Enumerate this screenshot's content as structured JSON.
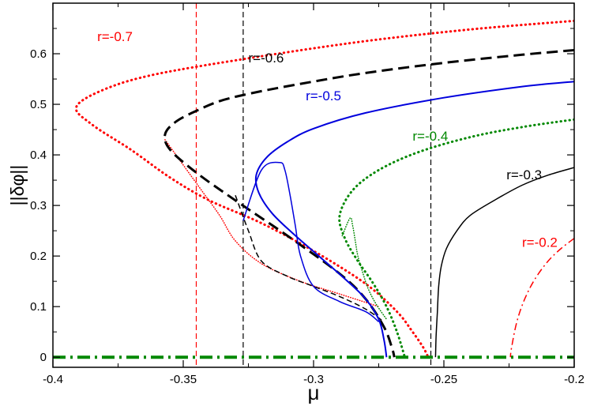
{
  "chart_data": {
    "type": "line",
    "xlabel": "μ",
    "ylabel": "||δφ||",
    "xlim": [
      -0.4,
      -0.2
    ],
    "ylim": [
      -0.02,
      0.7
    ],
    "xticks": [
      -0.4,
      -0.35,
      -0.3,
      -0.25,
      -0.2
    ],
    "xtick_labels": [
      "-0.4",
      "-0.35",
      "-0.3",
      "-0.25",
      "-0.2"
    ],
    "yticks": [
      0,
      0.1,
      0.2,
      0.3,
      0.4,
      0.5,
      0.6
    ],
    "ytick_labels": [
      "0",
      "0.1",
      "0.2",
      "0.3",
      "0.4",
      "0.5",
      "0.6"
    ],
    "grid": false,
    "vertical_lines": [
      {
        "x": -0.345,
        "color": "#ff0000",
        "style": "dashed"
      },
      {
        "x": -0.327,
        "color": "#000000",
        "style": "dashed"
      },
      {
        "x": -0.255,
        "color": "#000000",
        "style": "dashed"
      }
    ],
    "series": [
      {
        "name": "r=-0.7",
        "color": "#ff0000",
        "style": "dotted",
        "width": 3,
        "x": [
          -0.2,
          -0.24,
          -0.28,
          -0.32,
          -0.36,
          -0.38,
          -0.391,
          -0.385,
          -0.37,
          -0.355,
          -0.34,
          -0.32,
          -0.3,
          -0.28,
          -0.268,
          -0.262,
          -0.258,
          -0.256
        ],
        "y": [
          0.665,
          0.648,
          0.625,
          0.595,
          0.56,
          0.53,
          0.495,
          0.46,
          0.41,
          0.355,
          0.31,
          0.265,
          0.21,
          0.145,
          0.09,
          0.05,
          0.02,
          0.0
        ]
      },
      {
        "name": "",
        "color": "#ff0000",
        "style": "dotted",
        "width": 1.5,
        "x": [
          -0.357,
          -0.35,
          -0.343,
          -0.336,
          -0.33,
          -0.32,
          -0.305,
          -0.29,
          -0.275
        ],
        "y": [
          0.43,
          0.38,
          0.33,
          0.28,
          0.23,
          0.185,
          0.15,
          0.125,
          0.1
        ]
      },
      {
        "name": "r=-0.6",
        "color": "#000000",
        "style": "dashed",
        "width": 3,
        "x": [
          -0.2,
          -0.22,
          -0.25,
          -0.28,
          -0.3,
          -0.32,
          -0.335,
          -0.345,
          -0.353,
          -0.357,
          -0.355,
          -0.345,
          -0.33,
          -0.31,
          -0.29,
          -0.28,
          -0.273,
          -0.27,
          -0.269
        ],
        "y": [
          0.607,
          0.598,
          0.582,
          0.562,
          0.545,
          0.526,
          0.508,
          0.487,
          0.465,
          0.44,
          0.41,
          0.365,
          0.31,
          0.24,
          0.165,
          0.115,
          0.06,
          0.02,
          0.0
        ]
      },
      {
        "name": "",
        "color": "#000000",
        "style": "dashed",
        "width": 1.5,
        "x": [
          -0.33,
          -0.325,
          -0.32,
          -0.31,
          -0.3,
          -0.29,
          -0.28,
          -0.273
        ],
        "y": [
          0.32,
          0.25,
          0.19,
          0.16,
          0.14,
          0.12,
          0.095,
          0.07
        ]
      },
      {
        "name": "r=-0.5",
        "color": "#0000dd",
        "style": "solid",
        "width": 2,
        "x": [
          -0.2,
          -0.22,
          -0.25,
          -0.28,
          -0.3,
          -0.31,
          -0.318,
          -0.322,
          -0.321,
          -0.316,
          -0.308,
          -0.298,
          -0.288,
          -0.28,
          -0.275,
          -0.273,
          -0.272
        ],
        "y": [
          0.545,
          0.535,
          0.513,
          0.483,
          0.452,
          0.426,
          0.395,
          0.36,
          0.325,
          0.285,
          0.245,
          0.2,
          0.155,
          0.115,
          0.075,
          0.035,
          0.0
        ]
      },
      {
        "name": "",
        "color": "#0000dd",
        "style": "solid",
        "width": 1.5,
        "x": [
          -0.327,
          -0.32,
          -0.313,
          -0.311,
          -0.309,
          -0.307,
          -0.305,
          -0.3,
          -0.29,
          -0.28,
          -0.275
        ],
        "y": [
          0.27,
          0.37,
          0.385,
          0.37,
          0.32,
          0.26,
          0.2,
          0.14,
          0.11,
          0.09,
          0.07
        ]
      },
      {
        "name": "r=-0.4",
        "color": "#008800",
        "style": "dotted",
        "width": 3,
        "x": [
          -0.2,
          -0.22,
          -0.24,
          -0.26,
          -0.275,
          -0.285,
          -0.29,
          -0.288,
          -0.283,
          -0.277,
          -0.272,
          -0.268,
          -0.265
        ],
        "y": [
          0.47,
          0.455,
          0.435,
          0.405,
          0.37,
          0.33,
          0.28,
          0.235,
          0.19,
          0.145,
          0.1,
          0.05,
          0.0
        ]
      },
      {
        "name": "",
        "color": "#008800",
        "style": "dotted",
        "width": 1.5,
        "x": [
          -0.289,
          -0.286,
          -0.285,
          -0.284,
          -0.283,
          -0.281,
          -0.279,
          -0.276,
          -0.272
        ],
        "y": [
          0.24,
          0.275,
          0.26,
          0.23,
          0.2,
          0.165,
          0.135,
          0.105,
          0.075
        ]
      },
      {
        "name": "r=-0.3",
        "color": "#000000",
        "style": "solid",
        "width": 1.5,
        "x": [
          -0.2,
          -0.21,
          -0.22,
          -0.23,
          -0.24,
          -0.245,
          -0.249,
          -0.251,
          -0.252,
          -0.2525,
          -0.253,
          -0.2532
        ],
        "y": [
          0.375,
          0.36,
          0.34,
          0.312,
          0.28,
          0.25,
          0.215,
          0.18,
          0.14,
          0.09,
          0.04,
          0.0
        ]
      },
      {
        "name": "r=-0.2",
        "color": "#ff0000",
        "style": "dashdot",
        "width": 1.5,
        "x": [
          -0.2,
          -0.205,
          -0.21,
          -0.215,
          -0.219,
          -0.222,
          -0.224,
          -0.2245
        ],
        "y": [
          0.235,
          0.215,
          0.19,
          0.155,
          0.115,
          0.07,
          0.02,
          0.0
        ]
      },
      {
        "name": "",
        "color": "#008800",
        "style": "dashdot",
        "width": 4,
        "x": [
          -0.4,
          -0.2
        ],
        "y": [
          0.0,
          0.0
        ]
      }
    ],
    "annotations": [
      {
        "text": "r=-0.7",
        "x": -0.383,
        "y": 0.625,
        "color": "#ff0000"
      },
      {
        "text": "r=-0.6",
        "x": -0.325,
        "y": 0.583,
        "color": "#000000"
      },
      {
        "text": "r=-0.5",
        "x": -0.303,
        "y": 0.508,
        "color": "#0000dd"
      },
      {
        "text": "r=-0.4",
        "x": -0.262,
        "y": 0.428,
        "color": "#008800"
      },
      {
        "text": "r=-0.3",
        "x": -0.226,
        "y": 0.352,
        "color": "#000000"
      },
      {
        "text": "r=-0.2",
        "x": -0.22,
        "y": 0.218,
        "color": "#ff0000"
      }
    ]
  }
}
